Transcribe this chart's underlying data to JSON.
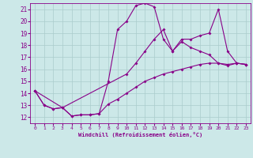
{
  "bg_color": "#cce8e8",
  "line_color": "#880088",
  "grid_color": "#aacccc",
  "xlabel": "Windchill (Refroidissement éolien,°C)",
  "xlim": [
    -0.5,
    23.5
  ],
  "ylim": [
    11.5,
    21.5
  ],
  "yticks": [
    12,
    13,
    14,
    15,
    16,
    17,
    18,
    19,
    20,
    21
  ],
  "xticks": [
    0,
    1,
    2,
    3,
    4,
    5,
    6,
    7,
    8,
    9,
    10,
    11,
    12,
    13,
    14,
    15,
    16,
    17,
    18,
    19,
    20,
    21,
    22,
    23
  ],
  "series": [
    {
      "x": [
        0,
        1,
        2,
        3,
        4,
        5,
        6,
        7,
        8,
        9,
        10,
        11,
        12,
        13,
        14,
        15,
        16,
        17,
        18,
        19,
        20,
        21,
        22,
        23
      ],
      "y": [
        14.2,
        13.0,
        12.7,
        12.8,
        12.1,
        12.2,
        12.2,
        12.3,
        13.1,
        13.5,
        14.0,
        14.5,
        15.0,
        15.3,
        15.6,
        15.8,
        16.0,
        16.2,
        16.4,
        16.5,
        16.5,
        16.4,
        16.5,
        16.4
      ]
    },
    {
      "x": [
        0,
        1,
        2,
        3,
        4,
        5,
        6,
        7,
        8,
        9,
        10,
        11,
        12,
        13,
        14,
        15,
        16,
        17,
        18,
        19,
        20,
        21,
        22,
        23
      ],
      "y": [
        14.2,
        13.0,
        12.7,
        12.8,
        12.1,
        12.2,
        12.2,
        12.3,
        15.0,
        19.3,
        20.0,
        21.3,
        21.5,
        21.2,
        18.5,
        17.5,
        18.3,
        17.8,
        17.5,
        17.2,
        16.5,
        16.3,
        16.5,
        16.4
      ]
    },
    {
      "x": [
        0,
        3,
        10,
        11,
        12,
        13,
        14,
        15,
        16,
        17,
        18,
        19,
        20,
        21,
        22,
        23
      ],
      "y": [
        14.2,
        12.8,
        15.6,
        16.5,
        17.5,
        18.5,
        19.3,
        17.5,
        18.5,
        18.5,
        18.8,
        19.0,
        21.0,
        17.5,
        16.5,
        16.4
      ]
    }
  ]
}
